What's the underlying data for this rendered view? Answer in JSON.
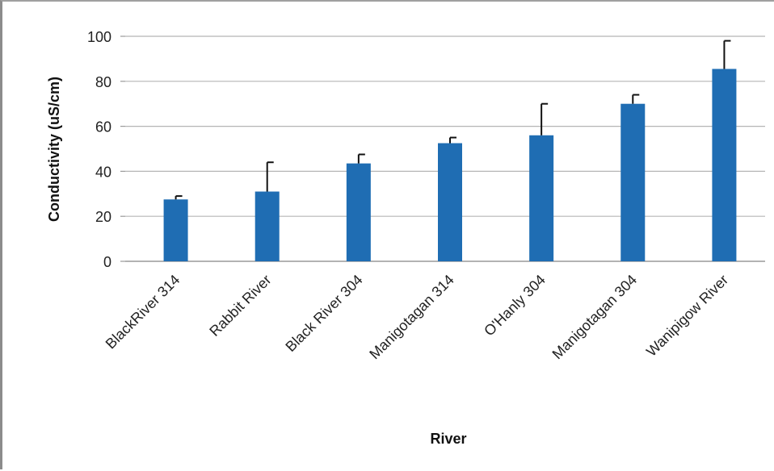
{
  "chart_data": {
    "type": "bar",
    "title": "",
    "xlabel": "River",
    "ylabel": "Conductivity (uS/cm)",
    "ylim": [
      0,
      100
    ],
    "yticks": [
      0,
      20,
      40,
      60,
      80,
      100
    ],
    "grid": true,
    "legend": "none",
    "bar_color": "#1f6db3",
    "categories": [
      "BlackRiver 314",
      "Rabbit River",
      "Black River 304",
      "Manigotagan 314",
      "O'Hanly 304",
      "Manigotagan 304",
      "Wanipigow River"
    ],
    "values": [
      27.5,
      31,
      43.5,
      52.5,
      56,
      70,
      85.5
    ],
    "error_plus": [
      1.5,
      13,
      4,
      2.5,
      14,
      4,
      12.5
    ]
  }
}
